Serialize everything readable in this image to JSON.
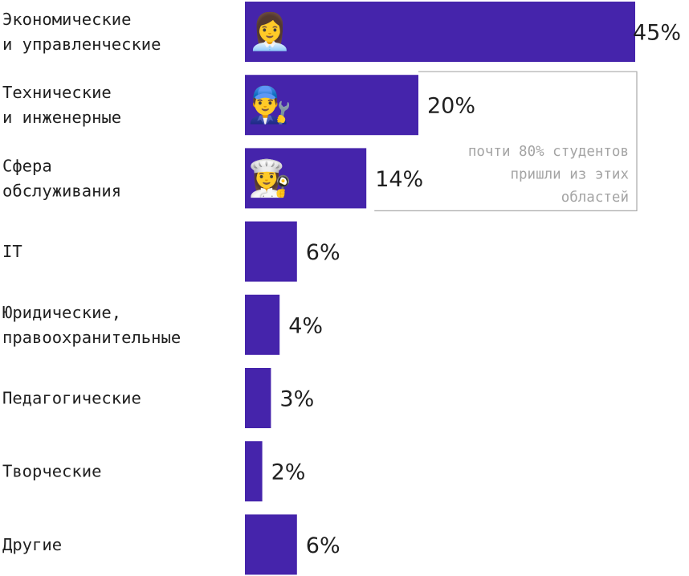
{
  "colors": {
    "bar": "#4524ab",
    "text": "#1f1f1f",
    "note_text": "#a4a4a4",
    "note_border": "#a9a9a9"
  },
  "chart_data": {
    "type": "bar",
    "orientation": "horizontal",
    "unit": "%",
    "categories": [
      [
        "Экономические",
        "и управленческие"
      ],
      [
        "Технические",
        "и инженерные"
      ],
      [
        "Сфера",
        "обслуживания"
      ],
      [
        "IT"
      ],
      [
        "Юридические,",
        "правоохранительные"
      ],
      [
        "Педагогические"
      ],
      [
        "Творческие"
      ],
      [
        "Другие"
      ]
    ],
    "values": [
      45,
      20,
      14,
      6,
      4,
      3,
      2,
      6
    ],
    "value_labels": [
      "45%",
      "20%",
      "14%",
      "6%",
      "4%",
      "3%",
      "2%",
      "6%"
    ],
    "bar_icons": [
      "👩‍💼",
      "👨‍🔧",
      "👩‍🍳",
      "",
      "",
      "",
      "",
      ""
    ],
    "bar_icon_names": [
      "woman-office-worker-icon",
      "man-mechanic-icon",
      "woman-cook-icon"
    ],
    "annotation": {
      "lines": [
        "почти 80% студентов",
        "пришли из этих",
        "областей"
      ],
      "covers_categories": [
        0,
        1,
        2
      ]
    },
    "xlim": [
      0,
      45
    ],
    "grid": false,
    "legend": "none"
  }
}
